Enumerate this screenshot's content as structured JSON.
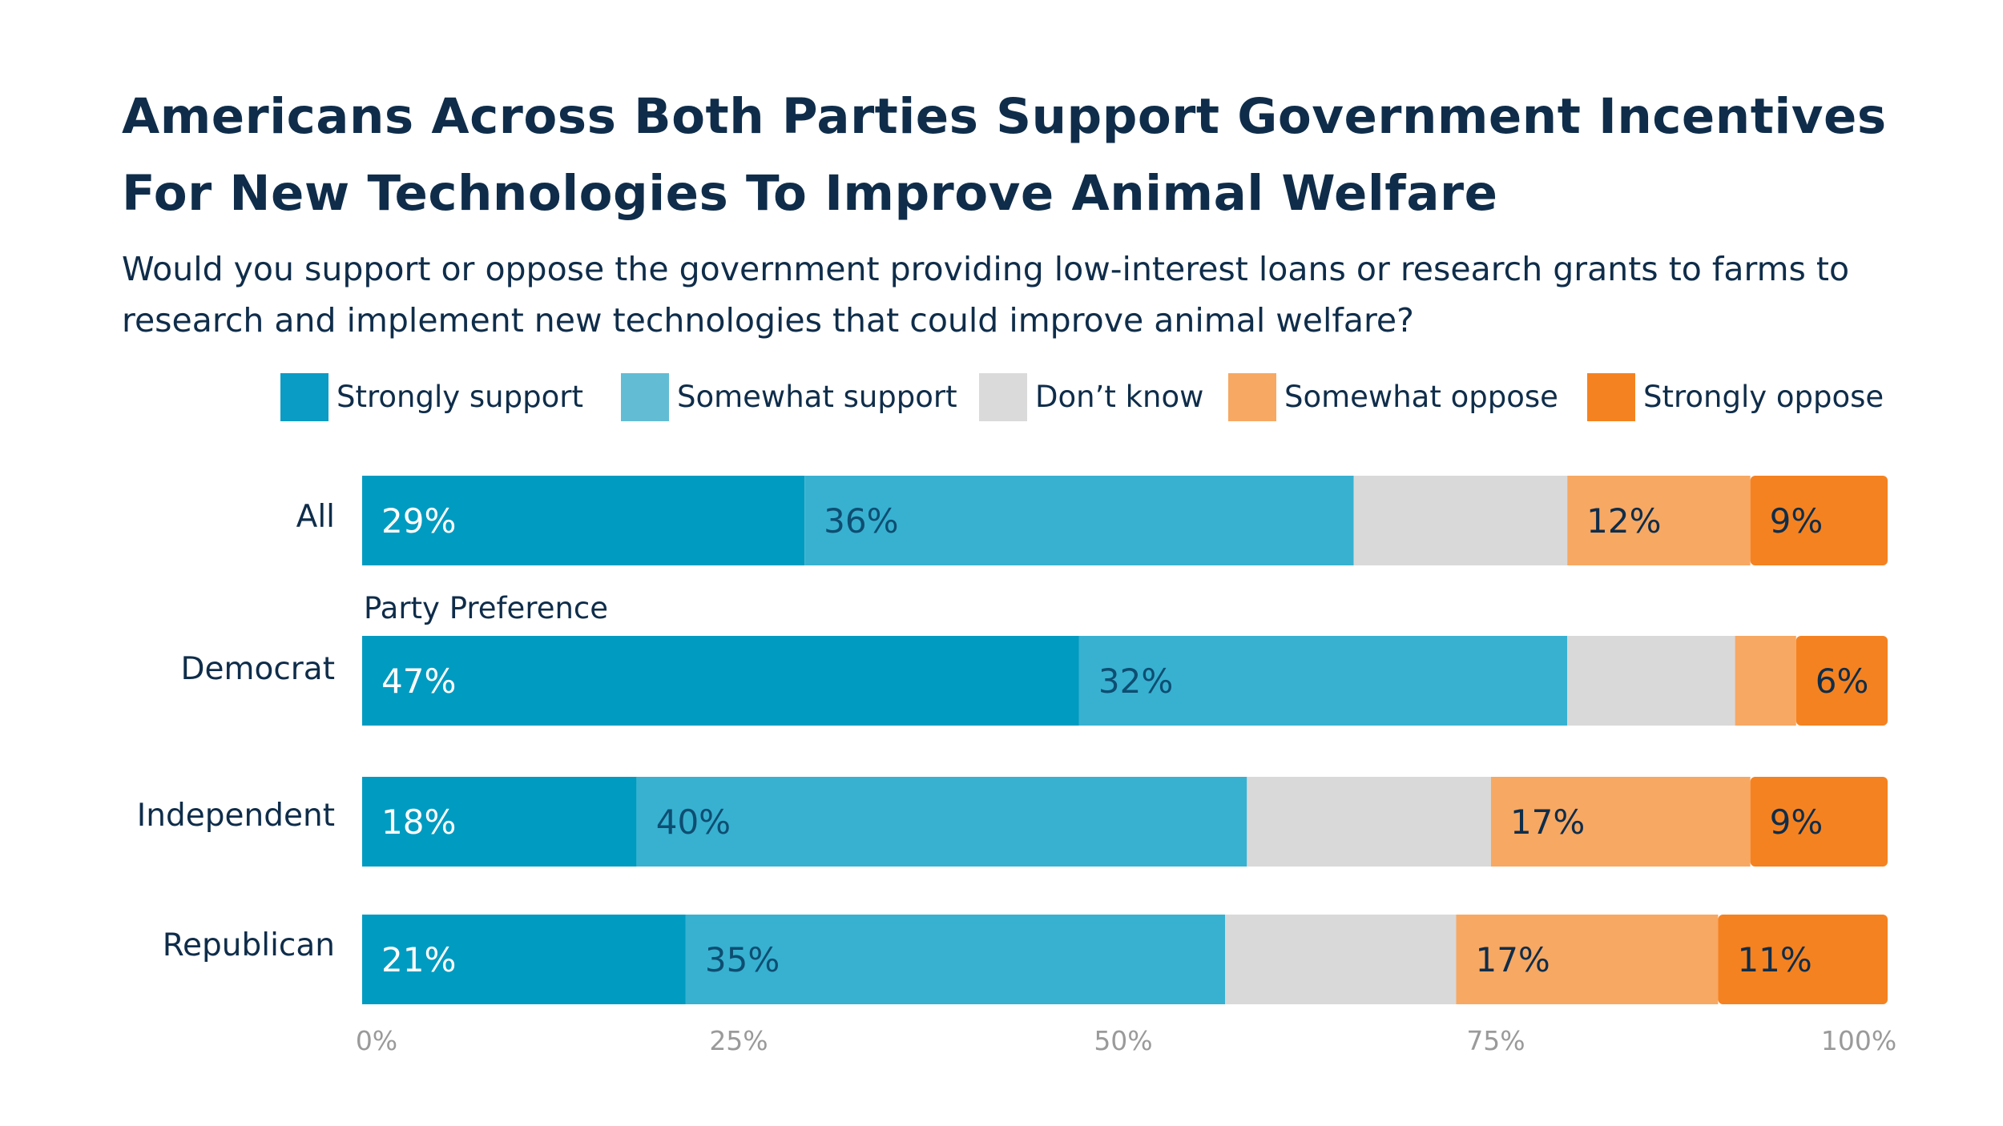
{
  "title": "Americans Across Both Parties Support Government Incentives For New Technologies To Improve Animal Welfare",
  "subtitle": "Would you support or oppose the government providing low-interest loans or research grants to farms to research and implement new technologies that could improve animal welfare?",
  "legend": [
    {
      "name": "Strongly support",
      "color": "#0a9cc4"
    },
    {
      "name": "Somewhat support",
      "color": "#62bdd4"
    },
    {
      "name": "Don’t know",
      "color": "#dadada"
    },
    {
      "name": "Somewhat oppose",
      "color": "#f7a863"
    },
    {
      "name": "Strongly oppose",
      "color": "#f58220"
    }
  ],
  "chart_data": {
    "type": "bar",
    "orientation": "horizontal",
    "stacked": true,
    "categories": [
      "All",
      "Democrat",
      "Independent",
      "Republican"
    ],
    "group_label": "Party Preference",
    "series": [
      {
        "name": "Strongly support",
        "values": [
          29,
          47,
          18,
          21
        ],
        "labels": [
          "29%",
          "47%",
          "18%",
          "21%"
        ],
        "color": "#009bc1",
        "label_color": "#ffffff"
      },
      {
        "name": "Somewhat support",
        "values": [
          36,
          32,
          40,
          35
        ],
        "labels": [
          "36%",
          "32%",
          "40%",
          "35%"
        ],
        "color": "#38b1d1",
        "label_color": "#0d4e72"
      },
      {
        "name": "Don’t know",
        "values": [
          14,
          11,
          16,
          15
        ],
        "labels": [
          "",
          "",
          "",
          ""
        ],
        "color": "#d9d9d9",
        "label_color": "#0f2d4a"
      },
      {
        "name": "Somewhat oppose",
        "values": [
          12,
          4,
          17,
          17
        ],
        "labels": [
          "12%",
          "",
          "17%",
          "17%"
        ],
        "color": "#f7a863",
        "label_color": "#0f2d4a"
      },
      {
        "name": "Strongly oppose",
        "values": [
          9,
          6,
          9,
          11
        ],
        "labels": [
          "9%",
          "6%",
          "9%",
          "11%"
        ],
        "color": "#f58220",
        "label_color": "#0f2d4a"
      }
    ],
    "x_ticks": [
      "0%",
      "25%",
      "50%",
      "75%",
      "100%"
    ],
    "xlim": [
      0,
      100
    ],
    "grid": false,
    "legend_position": "top"
  }
}
